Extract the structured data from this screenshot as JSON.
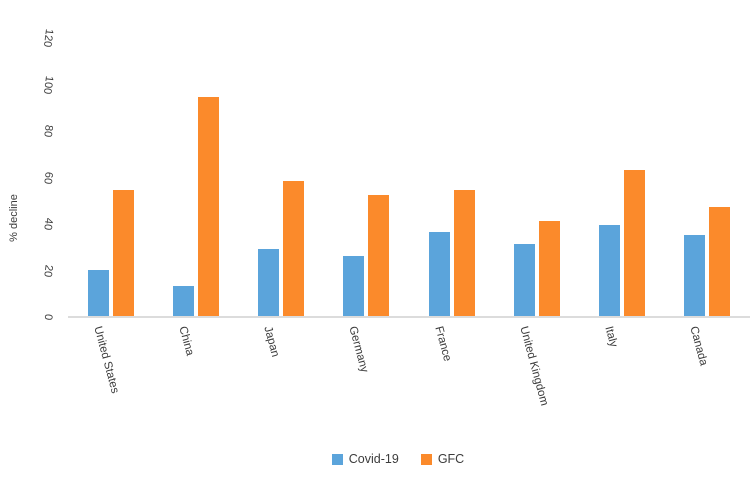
{
  "chart_data": {
    "type": "bar",
    "title": "",
    "categories": [
      "United States",
      "China",
      "Japan",
      "Germany",
      "France",
      "United Kingdom",
      "Italy",
      "Canada"
    ],
    "series": [
      {
        "name": "Covid-19",
        "color": "#5BA4DB",
        "values": [
          20,
          13,
          29,
          26,
          36,
          31,
          39,
          35
        ]
      },
      {
        "name": "GFC",
        "color": "#FB8A2B",
        "values": [
          54,
          94,
          58,
          52,
          54,
          41,
          63,
          47
        ]
      }
    ],
    "xlabel": "",
    "ylabel": "%  decline",
    "ylim": [
      0,
      120
    ],
    "yticks": [
      "0",
      "20",
      "40",
      "60",
      "80",
      "100",
      "120"
    ],
    "grid": false,
    "legend_position": "bottom",
    "tick_label_rotation": "rotated",
    "axis_line_color": "#DCDCDC",
    "text_color": "#3C3C3C",
    "background_color": "#FFFFFF"
  }
}
